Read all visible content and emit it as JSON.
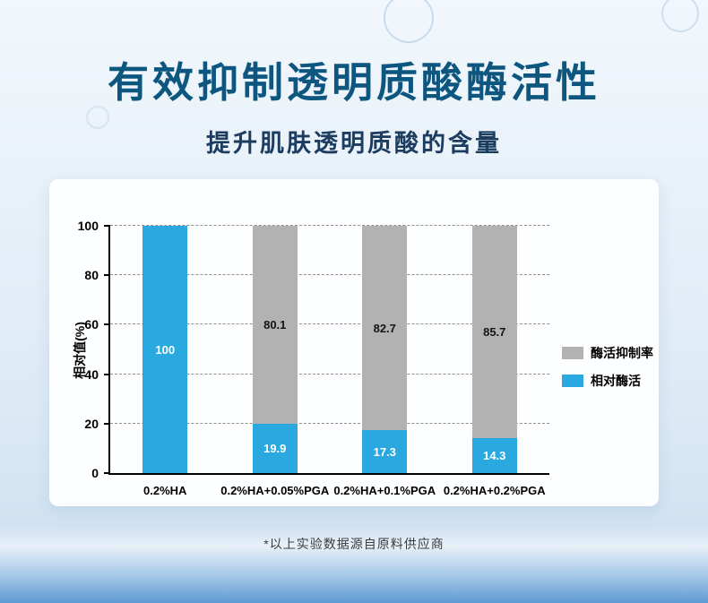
{
  "page": {
    "title": "有效抑制透明质酸酶活性",
    "subtitle": "提升肌肤透明质酸的含量",
    "footnote": "*以上实验数据源自原料供应商"
  },
  "colors": {
    "title_text": "#0d567f",
    "subtitle_text": "#1c3c60",
    "blue_bar": "#29a9e0",
    "gray_bar": "#b2b2b2",
    "background_bottom": "#5d9ad4"
  },
  "chart_data": {
    "type": "bar",
    "stacked": true,
    "title": "",
    "xlabel": "",
    "ylabel": "相对值(%)",
    "ylim": [
      0,
      100
    ],
    "yticks": [
      0,
      20,
      40,
      60,
      80,
      100
    ],
    "grid": "dashed-horizontal",
    "legend_position": "right",
    "categories": [
      "0.2%HA",
      "0.2%HA+0.05%PGA",
      "0.2%HA+0.1%PGA",
      "0.2%HA+0.2%PGA"
    ],
    "series": [
      {
        "name": "相对酶活",
        "color": "#29a9e0",
        "label_color": "#ffffff",
        "values": [
          100,
          19.9,
          17.3,
          14.3
        ]
      },
      {
        "name": "酶活抑制率",
        "color": "#b2b2b2",
        "label_color": "#141414",
        "values": [
          0,
          80.1,
          82.7,
          85.7
        ]
      }
    ],
    "legend": [
      {
        "label": "酶活抑制率",
        "color": "#b2b2b2"
      },
      {
        "label": "相对酶活",
        "color": "#29a9e0"
      }
    ]
  }
}
